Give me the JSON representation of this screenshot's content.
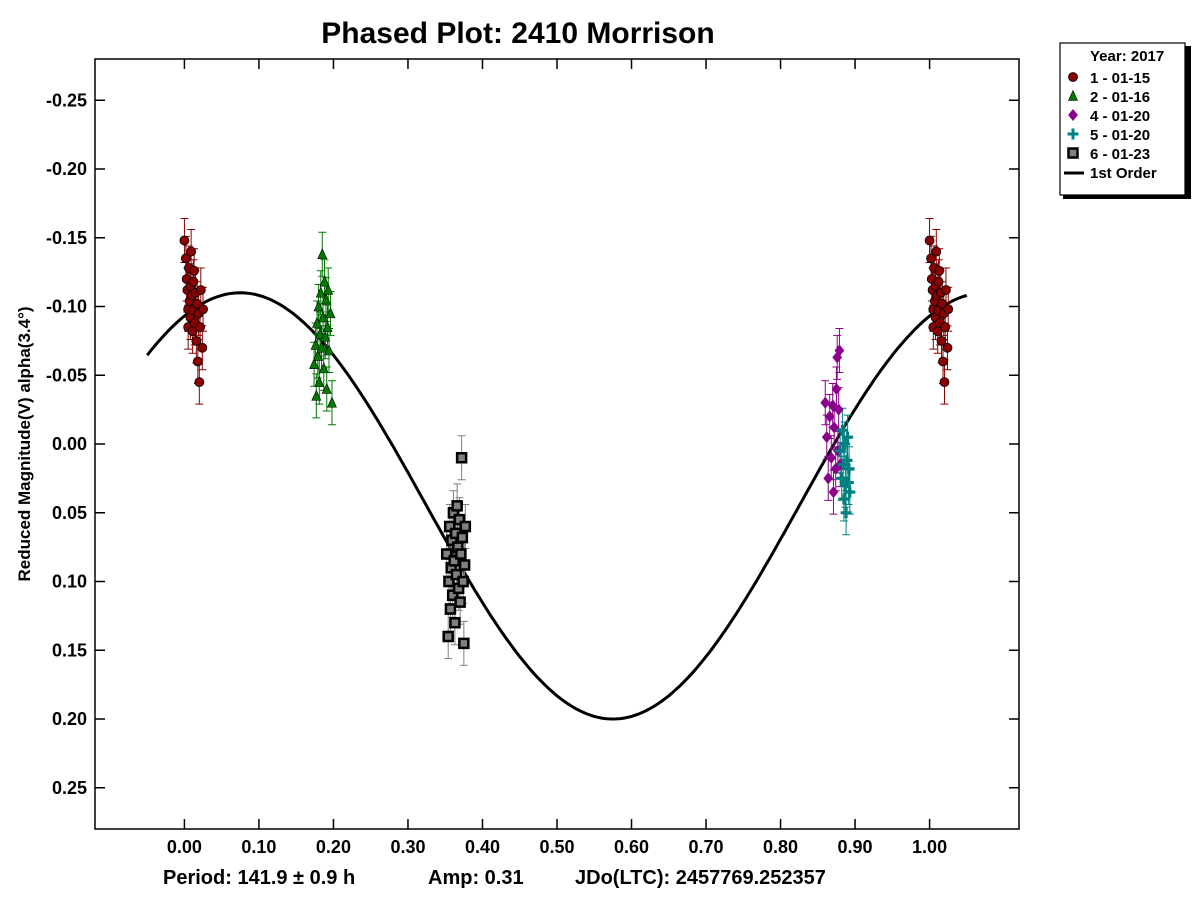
{
  "chart_data": {
    "type": "scatter",
    "title": "Phased Plot: 2410 Morrison",
    "ylabel": "Reduced Magnitude(V) alpha(3.4°)",
    "xlim": [
      -0.12,
      1.12
    ],
    "ylim": [
      -0.28,
      0.28
    ],
    "y_inverted": true,
    "x_ticks": [
      "0.00",
      "0.10",
      "0.20",
      "0.30",
      "0.40",
      "0.50",
      "0.60",
      "0.70",
      "0.80",
      "0.90",
      "1.00"
    ],
    "x_tick_values": [
      0,
      0.1,
      0.2,
      0.3,
      0.4,
      0.5,
      0.6,
      0.7,
      0.8,
      0.9,
      1.0
    ],
    "y_ticks": [
      "-0.25",
      "-0.20",
      "-0.15",
      "-0.10",
      "-0.05",
      "0.00",
      "0.05",
      "0.10",
      "0.15",
      "0.20",
      "0.25"
    ],
    "y_tick_values": [
      -0.25,
      -0.2,
      -0.15,
      -0.1,
      -0.05,
      0,
      0.05,
      0.1,
      0.15,
      0.2,
      0.25
    ],
    "grid": false,
    "legend_position": "top-right, outside plot",
    "legend_title": "Year: 2017",
    "footer": {
      "period": "Period: 141.9 ± 0.9 h",
      "amp": "Amp: 0.31",
      "jdo": "JDo(LTC): 2457769.252357"
    },
    "series": [
      {
        "name": "1 - 01-15",
        "marker": "circle",
        "color": "#8b0000",
        "points": [
          [
            0.0,
            -0.148
          ],
          [
            0.002,
            -0.135
          ],
          [
            0.003,
            -0.12
          ],
          [
            0.004,
            -0.112
          ],
          [
            0.005,
            -0.098
          ],
          [
            0.005,
            -0.085
          ],
          [
            0.006,
            -0.128
          ],
          [
            0.007,
            -0.104
          ],
          [
            0.008,
            -0.115
          ],
          [
            0.008,
            -0.092
          ],
          [
            0.009,
            -0.14
          ],
          [
            0.01,
            -0.108
          ],
          [
            0.011,
            -0.082
          ],
          [
            0.012,
            -0.118
          ],
          [
            0.012,
            -0.097
          ],
          [
            0.013,
            -0.126
          ],
          [
            0.014,
            -0.088
          ],
          [
            0.015,
            -0.11
          ],
          [
            0.016,
            -0.075
          ],
          [
            0.017,
            -0.102
          ],
          [
            0.018,
            -0.06
          ],
          [
            0.019,
            -0.095
          ],
          [
            0.02,
            -0.045
          ],
          [
            0.021,
            -0.085
          ],
          [
            0.022,
            -0.112
          ],
          [
            0.024,
            -0.07
          ],
          [
            0.025,
            -0.098
          ],
          [
            1.0,
            -0.148
          ],
          [
            1.002,
            -0.135
          ],
          [
            1.003,
            -0.12
          ],
          [
            1.004,
            -0.112
          ],
          [
            1.005,
            -0.098
          ],
          [
            1.005,
            -0.085
          ],
          [
            1.006,
            -0.128
          ],
          [
            1.007,
            -0.104
          ],
          [
            1.008,
            -0.115
          ],
          [
            1.008,
            -0.092
          ],
          [
            1.009,
            -0.14
          ],
          [
            1.01,
            -0.108
          ],
          [
            1.011,
            -0.082
          ],
          [
            1.012,
            -0.118
          ],
          [
            1.012,
            -0.097
          ],
          [
            1.013,
            -0.126
          ],
          [
            1.014,
            -0.088
          ],
          [
            1.015,
            -0.11
          ],
          [
            1.016,
            -0.075
          ],
          [
            1.017,
            -0.102
          ],
          [
            1.018,
            -0.06
          ],
          [
            1.019,
            -0.095
          ],
          [
            1.02,
            -0.045
          ],
          [
            1.021,
            -0.085
          ],
          [
            1.022,
            -0.112
          ],
          [
            1.024,
            -0.07
          ],
          [
            1.025,
            -0.098
          ]
        ]
      },
      {
        "name": "2 - 01-16",
        "marker": "triangle",
        "color": "#007a00",
        "points": [
          [
            0.174,
            -0.058
          ],
          [
            0.176,
            -0.072
          ],
          [
            0.177,
            -0.035
          ],
          [
            0.178,
            -0.088
          ],
          [
            0.179,
            -0.064
          ],
          [
            0.18,
            -0.1
          ],
          [
            0.181,
            -0.045
          ],
          [
            0.182,
            -0.08
          ],
          [
            0.183,
            -0.11
          ],
          [
            0.184,
            -0.07
          ],
          [
            0.185,
            -0.138
          ],
          [
            0.186,
            -0.092
          ],
          [
            0.187,
            -0.055
          ],
          [
            0.188,
            -0.118
          ],
          [
            0.189,
            -0.078
          ],
          [
            0.19,
            -0.105
          ],
          [
            0.191,
            -0.04
          ],
          [
            0.192,
            -0.085
          ],
          [
            0.193,
            -0.112
          ],
          [
            0.194,
            -0.068
          ],
          [
            0.196,
            -0.095
          ],
          [
            0.198,
            -0.03
          ]
        ]
      },
      {
        "name": "4 - 01-20",
        "marker": "diamond",
        "color": "#8b008b",
        "points": [
          [
            0.86,
            -0.03
          ],
          [
            0.862,
            -0.005
          ],
          [
            0.864,
            0.025
          ],
          [
            0.866,
            -0.02
          ],
          [
            0.868,
            0.01
          ],
          [
            0.87,
            -0.028
          ],
          [
            0.871,
            0.035
          ],
          [
            0.872,
            -0.012
          ],
          [
            0.874,
            0.018
          ],
          [
            0.875,
            -0.04
          ],
          [
            0.876,
            -0.063
          ],
          [
            0.877,
            0.005
          ],
          [
            0.878,
            -0.025
          ],
          [
            0.879,
            -0.068
          ],
          [
            0.88,
            0.015
          ]
        ]
      },
      {
        "name": "5 - 01-20",
        "marker": "plus",
        "color": "#008080",
        "points": [
          [
            0.88,
            0.005
          ],
          [
            0.882,
            0.025
          ],
          [
            0.883,
            -0.01
          ],
          [
            0.884,
            0.015
          ],
          [
            0.885,
            0.04
          ],
          [
            0.886,
            0.0
          ],
          [
            0.887,
            0.03
          ],
          [
            0.888,
            0.05
          ],
          [
            0.889,
            0.012
          ],
          [
            0.89,
            -0.005
          ],
          [
            0.891,
            0.028
          ],
          [
            0.892,
            0.018
          ],
          [
            0.893,
            0.035
          ]
        ]
      },
      {
        "name": "6 - 01-23",
        "marker": "square",
        "color": "#808080",
        "points": [
          [
            0.352,
            0.08
          ],
          [
            0.354,
            0.14
          ],
          [
            0.355,
            0.1
          ],
          [
            0.356,
            0.06
          ],
          [
            0.357,
            0.12
          ],
          [
            0.358,
            0.09
          ],
          [
            0.359,
            0.07
          ],
          [
            0.36,
            0.11
          ],
          [
            0.361,
            0.05
          ],
          [
            0.362,
            0.085
          ],
          [
            0.363,
            0.13
          ],
          [
            0.364,
            0.065
          ],
          [
            0.365,
            0.095
          ],
          [
            0.366,
            0.045
          ],
          [
            0.367,
            0.075
          ],
          [
            0.368,
            0.105
          ],
          [
            0.369,
            0.055
          ],
          [
            0.37,
            0.115
          ],
          [
            0.371,
            0.08
          ],
          [
            0.372,
            0.01
          ],
          [
            0.373,
            0.068
          ],
          [
            0.374,
            0.1
          ],
          [
            0.375,
            0.145
          ],
          [
            0.376,
            0.088
          ],
          [
            0.377,
            0.06
          ]
        ]
      }
    ],
    "fit_curve": {
      "name": "1st Order",
      "color": "#000000",
      "x_range": [
        -0.05,
        1.05
      ],
      "mean": 0.045,
      "amplitude": 0.155,
      "phase_of_brightest": 0.075
    }
  }
}
